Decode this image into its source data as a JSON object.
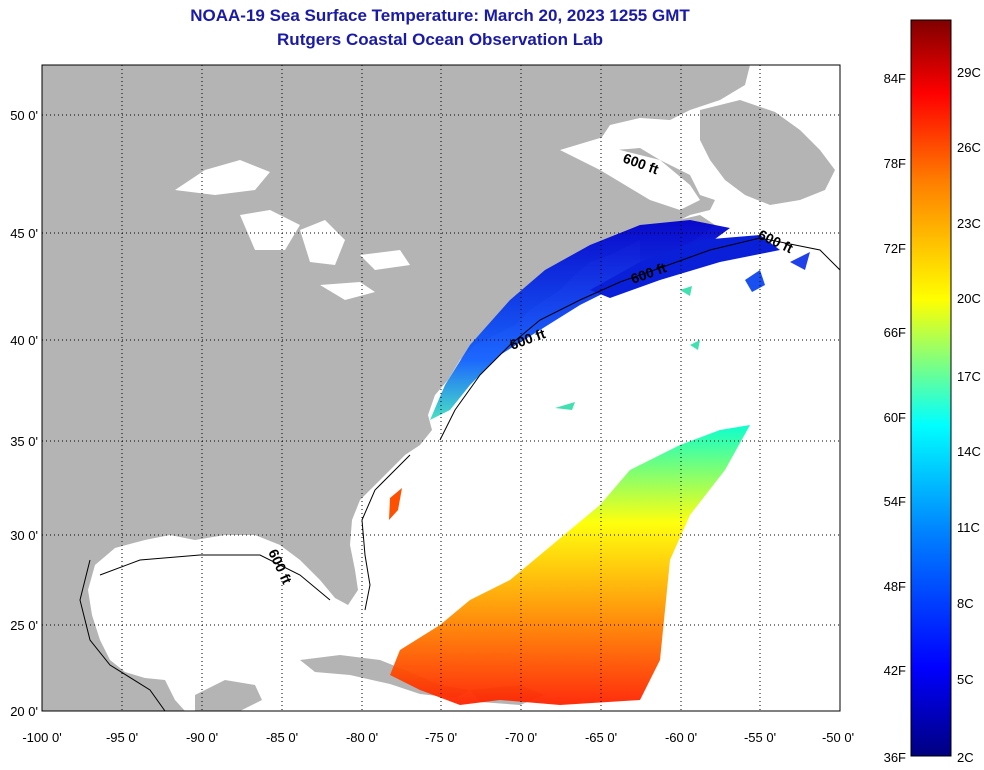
{
  "header": {
    "title": "NOAA-19 Sea Surface Temperature:  March 20, 2023 1255 GMT",
    "subtitle": "Rutgers Coastal Ocean Observation Lab"
  },
  "map": {
    "lon_ticks": [
      "-100 0'",
      "-95 0'",
      "-90 0'",
      "-85 0'",
      "-80 0'",
      "-75 0'",
      "-70 0'",
      "-65 0'",
      "-60 0'",
      "-55 0'",
      "-50 0'"
    ],
    "lat_ticks": [
      "50 0'",
      "45 0'",
      "40 0'",
      "35 0'",
      "30 0'",
      "25 0'",
      "20 0'"
    ],
    "contour_labels": [
      "600 ft",
      "600 ft",
      "600 ft",
      "600 ft",
      "600 ft"
    ],
    "colors": {
      "land": "#b4b4b4",
      "water": "#ffffff",
      "grid": "#000000"
    }
  },
  "colorbar": {
    "f_labels": [
      "84F",
      "78F",
      "72F",
      "66F",
      "60F",
      "54F",
      "48F",
      "42F",
      "36F"
    ],
    "c_labels": [
      "29C",
      "26C",
      "23C",
      "20C",
      "17C",
      "14C",
      "11C",
      "8C",
      "5C",
      "2C"
    ],
    "colors": [
      "#7f0000",
      "#ff0000",
      "#ff7f00",
      "#ffff00",
      "#00ffff",
      "#007fff",
      "#0000ff",
      "#00007f"
    ]
  }
}
